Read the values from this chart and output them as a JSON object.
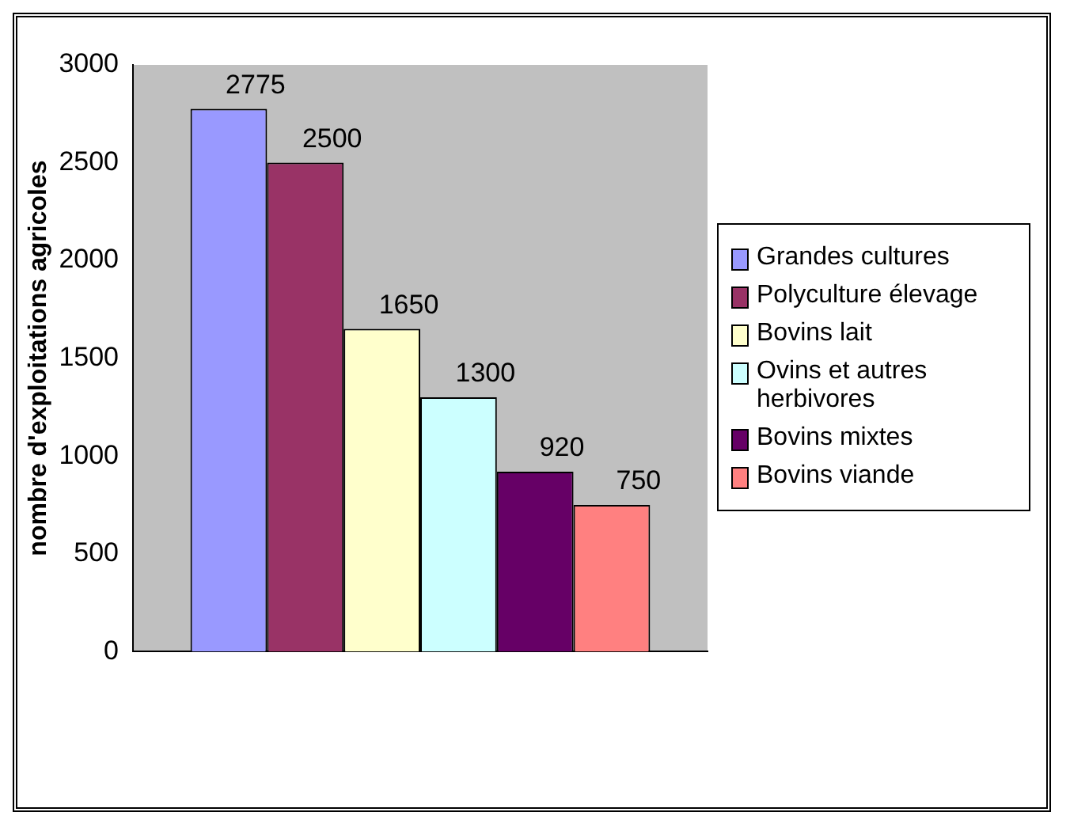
{
  "chart_data": {
    "type": "bar",
    "ylabel": "nombre d'exploitations agricoles",
    "categories": [
      null
    ],
    "series": [
      {
        "name": "Grandes cultures",
        "color": "#9999ff",
        "values": [
          2775
        ]
      },
      {
        "name": "Polyculture élevage",
        "color": "#993366",
        "values": [
          2500
        ]
      },
      {
        "name": "Bovins lait",
        "color": "#ffffcc",
        "values": [
          1650
        ]
      },
      {
        "name": "Ovins et autres herbivores",
        "color": "#ccffff",
        "values": [
          1300
        ]
      },
      {
        "name": "Bovins mixtes",
        "color": "#660066",
        "values": [
          920
        ]
      },
      {
        "name": "Bovins viande",
        "color": "#ff8080",
        "values": [
          750
        ]
      }
    ],
    "ylim": [
      0,
      3000
    ],
    "yticks": [
      0,
      500,
      1000,
      1500,
      2000,
      2500,
      3000
    ],
    "grid": false,
    "legend": "right",
    "data_labels": true
  }
}
